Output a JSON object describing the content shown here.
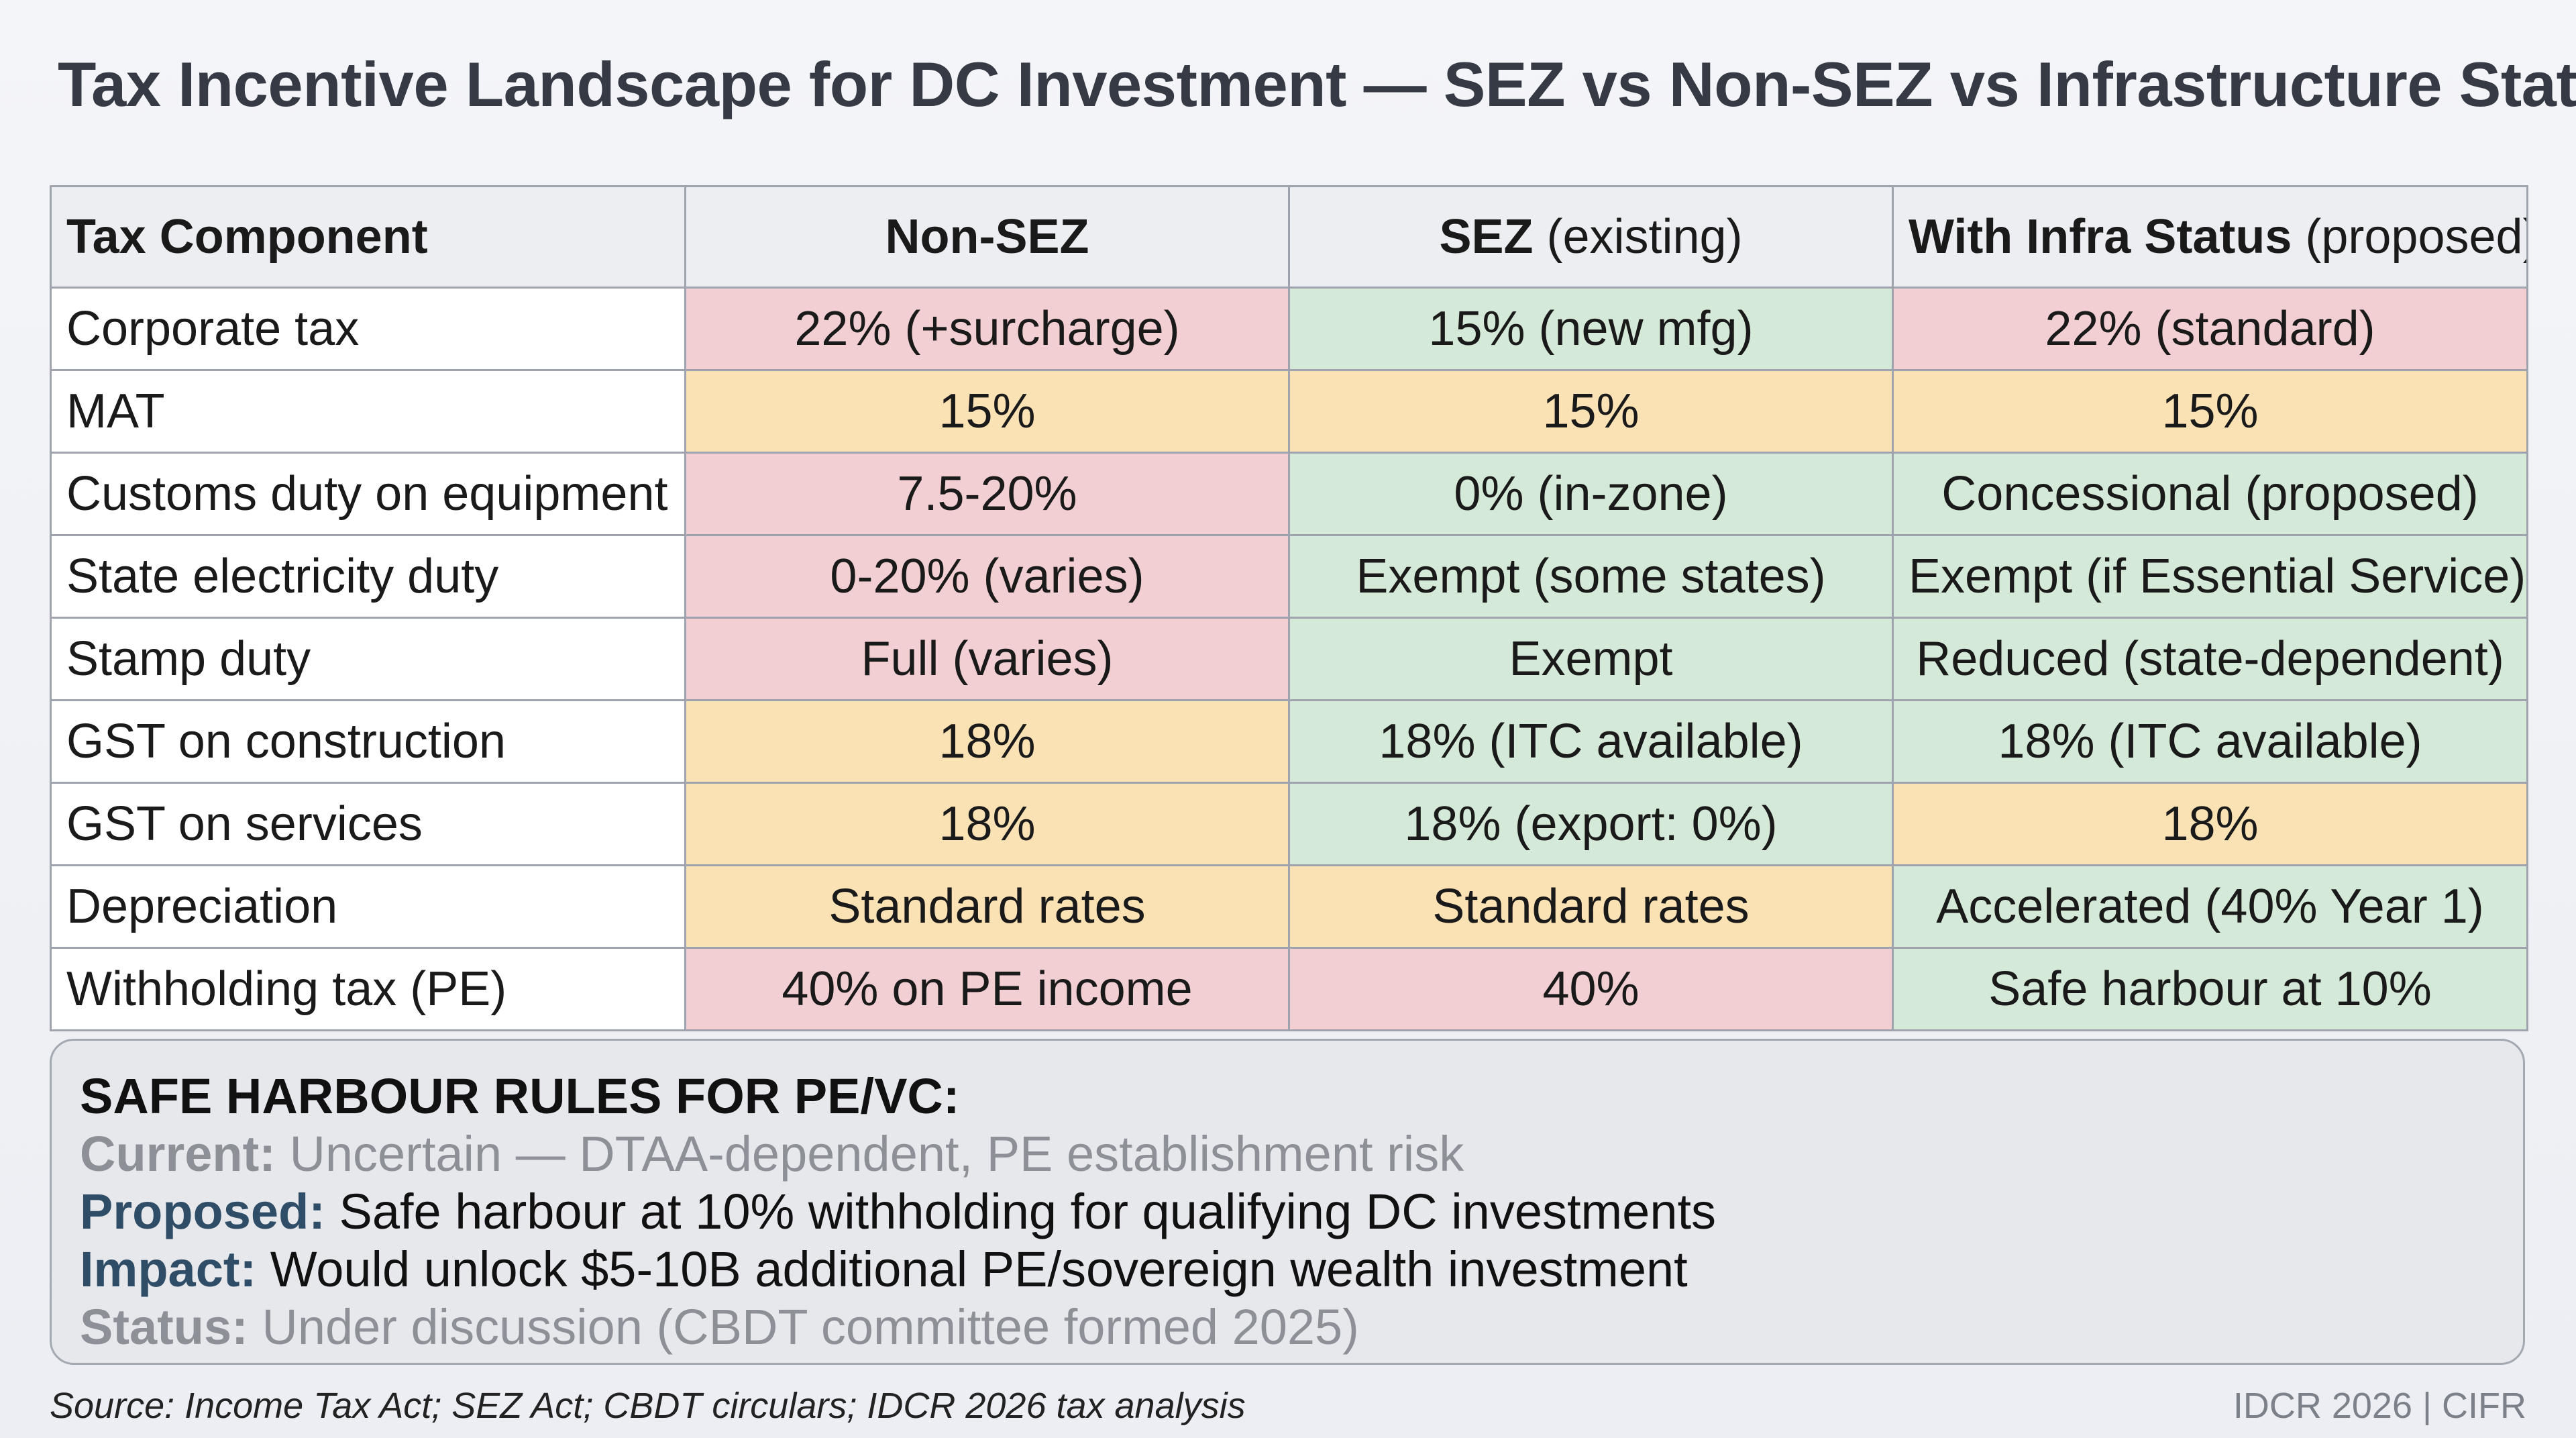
{
  "title": "Tax Incentive Landscape for DC Investment — SEZ vs Non-SEZ vs Infrastructure Status",
  "table": {
    "headers": [
      {
        "bold": "Tax Component",
        "rest": ""
      },
      {
        "bold": "Non-SEZ",
        "rest": ""
      },
      {
        "bold": "SEZ",
        "rest": " (existing)"
      },
      {
        "bold": "With Infra Status",
        "rest": " (proposed)"
      }
    ],
    "rows": [
      {
        "label": "Corporate tax",
        "cells": [
          {
            "text": "22% (+surcharge)",
            "status": "red"
          },
          {
            "text": "15% (new mfg)",
            "status": "green"
          },
          {
            "text": "22% (standard)",
            "status": "red"
          }
        ]
      },
      {
        "label": "MAT",
        "cells": [
          {
            "text": "15%",
            "status": "amber"
          },
          {
            "text": "15%",
            "status": "amber"
          },
          {
            "text": "15%",
            "status": "amber"
          }
        ]
      },
      {
        "label": "Customs duty on equipment",
        "cells": [
          {
            "text": "7.5-20%",
            "status": "red"
          },
          {
            "text": "0% (in-zone)",
            "status": "green"
          },
          {
            "text": "Concessional (proposed)",
            "status": "green"
          }
        ]
      },
      {
        "label": "State electricity duty",
        "cells": [
          {
            "text": "0-20% (varies)",
            "status": "red"
          },
          {
            "text": "Exempt (some states)",
            "status": "green"
          },
          {
            "text": "Exempt (if Essential Service)",
            "status": "green"
          }
        ]
      },
      {
        "label": "Stamp duty",
        "cells": [
          {
            "text": "Full (varies)",
            "status": "red"
          },
          {
            "text": "Exempt",
            "status": "green"
          },
          {
            "text": "Reduced (state-dependent)",
            "status": "green"
          }
        ]
      },
      {
        "label": "GST on construction",
        "cells": [
          {
            "text": "18%",
            "status": "amber"
          },
          {
            "text": "18% (ITC available)",
            "status": "green"
          },
          {
            "text": "18% (ITC available)",
            "status": "green"
          }
        ]
      },
      {
        "label": "GST on services",
        "cells": [
          {
            "text": "18%",
            "status": "amber"
          },
          {
            "text": "18% (export: 0%)",
            "status": "green"
          },
          {
            "text": "18%",
            "status": "amber"
          }
        ]
      },
      {
        "label": "Depreciation",
        "cells": [
          {
            "text": "Standard rates",
            "status": "amber"
          },
          {
            "text": "Standard rates",
            "status": "amber"
          },
          {
            "text": "Accelerated (40% Year 1)",
            "status": "green"
          }
        ]
      },
      {
        "label": "Withholding tax (PE)",
        "cells": [
          {
            "text": "40% on PE income",
            "status": "red"
          },
          {
            "text": "40%",
            "status": "red"
          },
          {
            "text": "Safe harbour at 10%",
            "status": "green"
          }
        ]
      }
    ]
  },
  "colors": {
    "red": "#f2cfd2",
    "amber": "#fbe2b4",
    "green": "#d5e9d8"
  },
  "safe_harbour": {
    "heading": "SAFE HARBOUR RULES FOR PE/VC:",
    "lines": [
      {
        "key": "Current:",
        "text": " Uncertain — DTAA-dependent, PE establishment risk",
        "tone": "muted"
      },
      {
        "key": "Proposed:",
        "text": " Safe harbour at 10% withholding for qualifying DC investments",
        "tone": "strong"
      },
      {
        "key": "Impact:",
        "text": " Would unlock $5-10B additional PE/sovereign wealth investment",
        "tone": "strong"
      },
      {
        "key": "Status:",
        "text": " Under discussion (CBDT committee formed 2025)",
        "tone": "muted"
      }
    ]
  },
  "footer": {
    "source": "Source: Income Tax Act; SEZ Act; CBDT circulars; IDCR 2026 tax analysis",
    "credit": "IDCR 2026 | CIFR"
  }
}
